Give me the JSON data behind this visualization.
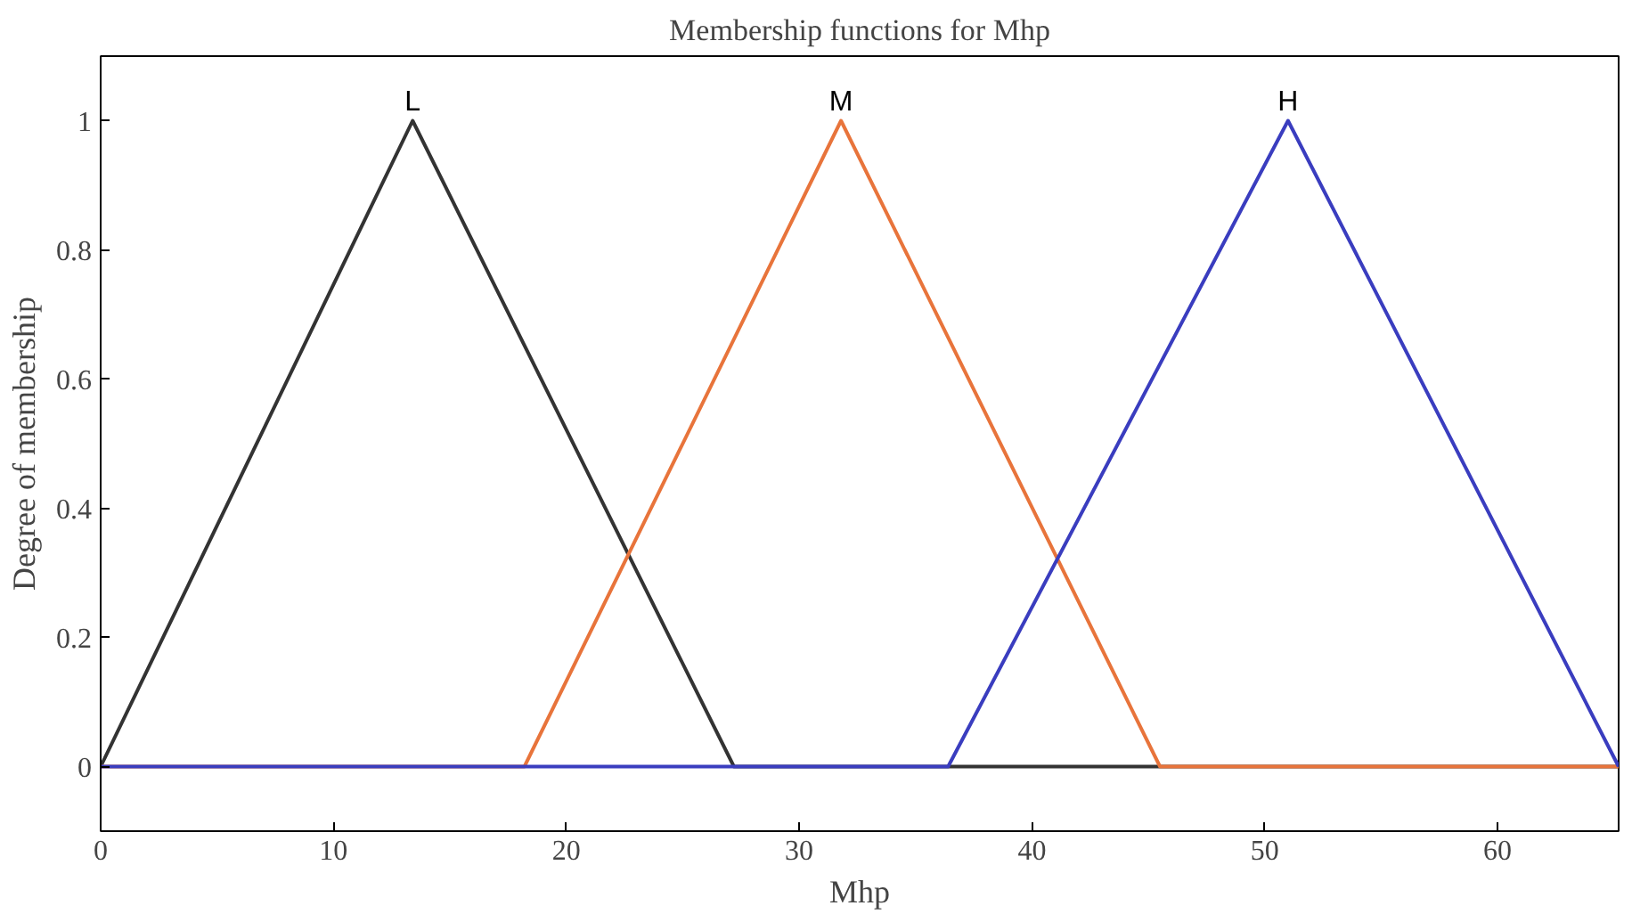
{
  "chart_data": {
    "type": "line",
    "title": "Membership functions for Mhp",
    "xlabel": "Mhp",
    "ylabel": "Degree of membership",
    "series": [
      {
        "name": "L",
        "color": "#333333",
        "x": [
          0,
          0,
          13.4,
          27.2,
          65.2
        ],
        "values": [
          0,
          0,
          1,
          0,
          0
        ]
      },
      {
        "name": "M",
        "color": "#e8743b",
        "x": [
          0,
          18.2,
          31.8,
          45.5,
          65.2
        ],
        "values": [
          0,
          0,
          1,
          0,
          0
        ]
      },
      {
        "name": "H",
        "color": "#3a3dbf",
        "x": [
          0,
          36.4,
          51.0,
          65.2,
          65.2
        ],
        "values": [
          0,
          0,
          1,
          0,
          0
        ]
      }
    ],
    "xlim": [
      0,
      65.2
    ],
    "ylim": [
      -0.1,
      1.1
    ],
    "xticks": [
      0,
      10,
      20,
      30,
      40,
      50,
      60
    ],
    "yticks": [
      0,
      0.2,
      0.4,
      0.6,
      0.8,
      1
    ],
    "grid": false
  }
}
